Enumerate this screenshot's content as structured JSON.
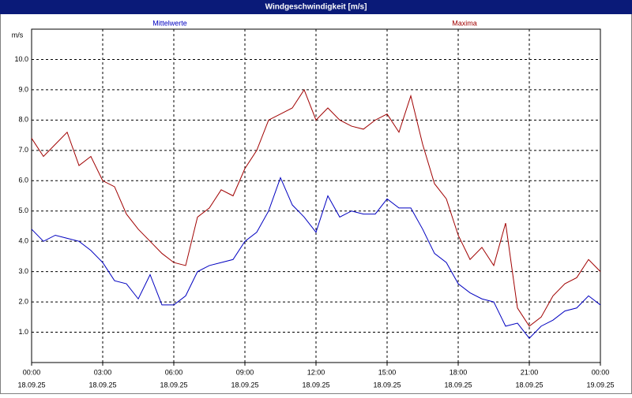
{
  "chart_data": {
    "type": "line",
    "title": "Windgeschwindigkeit [m/s]",
    "y_unit": "m/s",
    "x": [
      0,
      0.5,
      1,
      1.5,
      2,
      2.5,
      3,
      3.5,
      4,
      4.5,
      5,
      5.5,
      6,
      6.5,
      7,
      7.5,
      8,
      8.5,
      9,
      9.5,
      10,
      10.5,
      11,
      11.5,
      12,
      12.5,
      13,
      13.5,
      14,
      14.5,
      15,
      15.5,
      16,
      16.5,
      17,
      17.5,
      18,
      18.5,
      19,
      19.5,
      20,
      20.5,
      21,
      21.5,
      22,
      22.5,
      23,
      23.5,
      24
    ],
    "series": [
      {
        "name": "Mittelwerte",
        "color": "#0000c0",
        "values": [
          4.4,
          4.0,
          4.2,
          4.1,
          4.0,
          3.7,
          3.3,
          2.7,
          2.6,
          2.1,
          2.9,
          1.9,
          1.9,
          2.2,
          3.0,
          3.2,
          3.3,
          3.4,
          4.0,
          4.3,
          5.0,
          6.1,
          5.2,
          4.8,
          4.3,
          5.5,
          4.8,
          5.0,
          4.9,
          4.9,
          5.4,
          5.1,
          5.1,
          4.4,
          3.6,
          3.3,
          2.6,
          2.3,
          2.1,
          2.0,
          1.2,
          1.3,
          0.8,
          1.2,
          1.4,
          1.7,
          1.8,
          2.2,
          1.9
        ]
      },
      {
        "name": "Maxima",
        "color": "#a00000",
        "values": [
          7.4,
          6.8,
          7.2,
          7.6,
          6.5,
          6.8,
          6.0,
          5.8,
          4.9,
          4.4,
          4.0,
          3.6,
          3.3,
          3.2,
          4.8,
          5.1,
          5.7,
          5.5,
          6.4,
          7.0,
          8.0,
          8.2,
          8.4,
          9.0,
          8.0,
          8.4,
          8.0,
          7.8,
          7.7,
          8.0,
          8.2,
          7.6,
          8.8,
          7.2,
          5.9,
          5.4,
          4.2,
          3.4,
          3.8,
          3.2,
          4.6,
          1.8,
          1.2,
          1.5,
          2.2,
          2.6,
          2.8,
          3.4,
          3.0
        ]
      }
    ],
    "xlim": [
      0,
      24
    ],
    "xticks": [
      {
        "value": 0,
        "label": "00:00"
      },
      {
        "value": 3,
        "label": "03:00"
      },
      {
        "value": 6,
        "label": "06:00"
      },
      {
        "value": 9,
        "label": "09:00"
      },
      {
        "value": 12,
        "label": "12:00"
      },
      {
        "value": 15,
        "label": "15:00"
      },
      {
        "value": 18,
        "label": "18:00"
      },
      {
        "value": 21,
        "label": "21:00"
      },
      {
        "value": 24,
        "label": "00:00"
      }
    ],
    "xtick_dates": [
      "18.09.25",
      "18.09.25",
      "18.09.25",
      "18.09.25",
      "18.09.25",
      "18.09.25",
      "18.09.25",
      "18.09.25",
      "19.09.25"
    ],
    "ylim": [
      0,
      11
    ],
    "yticks": [
      {
        "value": 1,
        "label": "1.0"
      },
      {
        "value": 2,
        "label": "2.0"
      },
      {
        "value": 3,
        "label": "3.0"
      },
      {
        "value": 4,
        "label": "4.0"
      },
      {
        "value": 5,
        "label": "5.0"
      },
      {
        "value": 6,
        "label": "6.0"
      },
      {
        "value": 7,
        "label": "7.0"
      },
      {
        "value": 8,
        "label": "8.0"
      },
      {
        "value": 9,
        "label": "9.0"
      },
      {
        "value": 10,
        "label": "10.0"
      }
    ],
    "grid": true
  }
}
